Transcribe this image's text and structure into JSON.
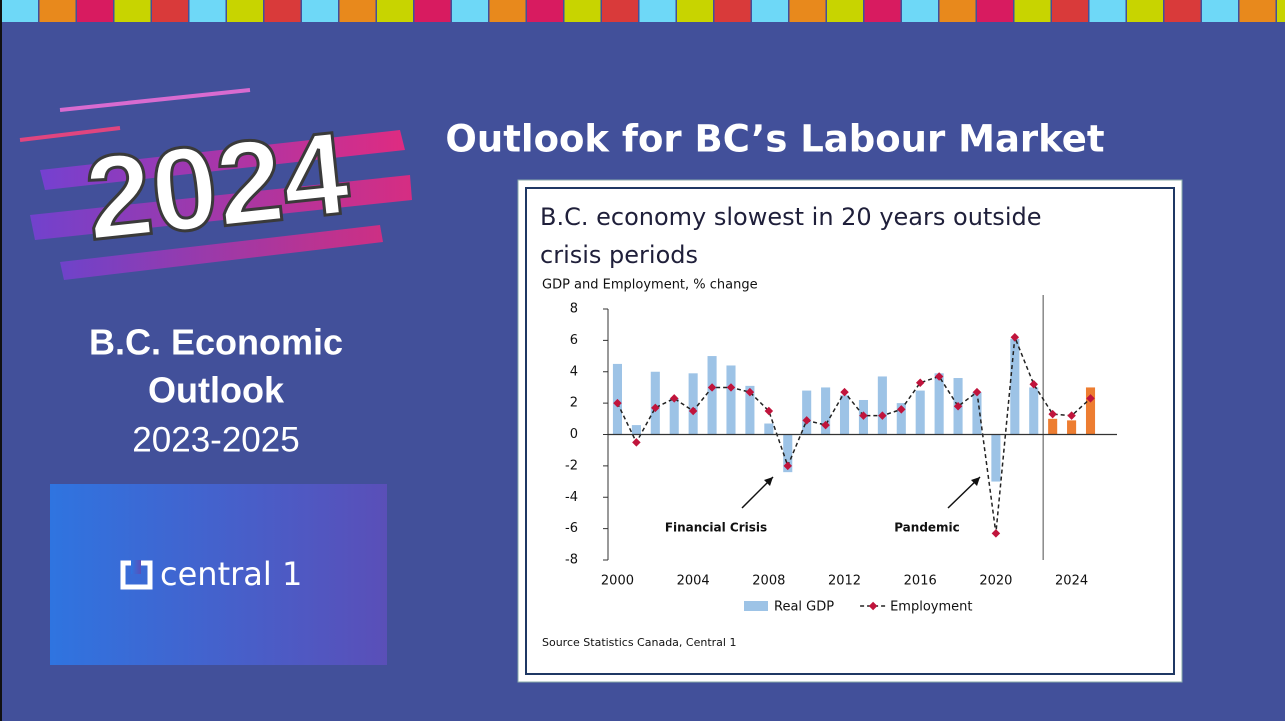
{
  "header": {
    "badge": "2024",
    "title": "Outlook for BC’s Labour Market"
  },
  "sidebar": {
    "heading_lines": [
      "B.C. Economic",
      "Outlook"
    ],
    "years": "2023-2025",
    "logo_text": "central 1"
  },
  "chart_data": {
    "type": "combo",
    "title_lines": [
      "B.C. economy slowest in 20 years outside",
      "crisis periods"
    ],
    "subtitle": "GDP and Employment, % change",
    "x": [
      2000,
      2001,
      2002,
      2003,
      2004,
      2005,
      2006,
      2007,
      2008,
      2009,
      2010,
      2011,
      2012,
      2013,
      2014,
      2015,
      2016,
      2017,
      2018,
      2019,
      2020,
      2021,
      2022,
      2023,
      2024,
      2025
    ],
    "series": [
      {
        "name": "Real GDP",
        "kind": "bar",
        "color": "#9dc3e6",
        "values": [
          4.5,
          0.6,
          4.0,
          2.3,
          3.9,
          5.0,
          4.4,
          3.1,
          0.7,
          -2.4,
          2.8,
          3.0,
          2.5,
          2.2,
          3.7,
          2.0,
          2.8,
          3.9,
          3.6,
          2.7,
          -3.0,
          6.1,
          3.0,
          1.0,
          0.9,
          3.0
        ]
      },
      {
        "name": "Employment",
        "kind": "line",
        "color": "#222222",
        "marker_color": "#c0143c",
        "values": [
          2.0,
          -0.5,
          1.7,
          2.3,
          1.5,
          3.0,
          3.0,
          2.7,
          1.5,
          -2.0,
          0.9,
          0.6,
          2.7,
          1.2,
          1.2,
          1.6,
          3.3,
          3.7,
          1.8,
          2.7,
          -6.3,
          6.2,
          3.2,
          1.3,
          1.2,
          2.3
        ]
      }
    ],
    "highlight": {
      "from": 2023,
      "color": "#ed7d31"
    },
    "xlim": [
      1999.5,
      2026.4
    ],
    "ylim": [
      -8,
      8
    ],
    "xticks": [
      2000,
      2004,
      2008,
      2012,
      2016,
      2020,
      2024
    ],
    "yticks": [
      -8,
      -6,
      -4,
      -2,
      0,
      2,
      4,
      6,
      8
    ],
    "annotations": [
      "Financial Crisis",
      "Pandemic"
    ],
    "source": "Source Statistics Canada, Central 1"
  }
}
